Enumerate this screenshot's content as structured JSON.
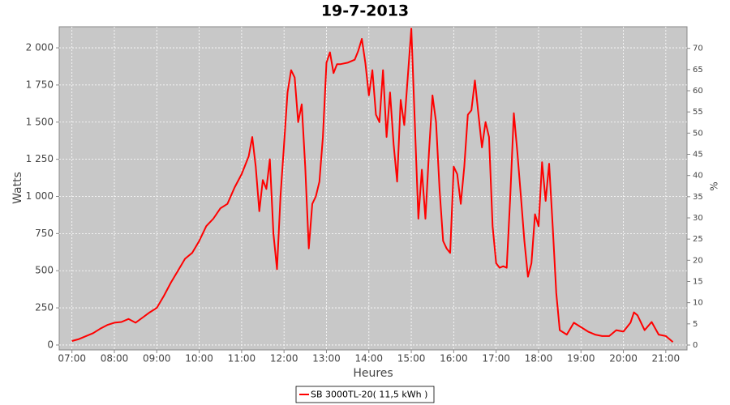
{
  "chart_data": {
    "type": "line",
    "title": "19-7-2013",
    "x_label": "Heures",
    "y_label": "Watts",
    "y2_label": "%",
    "grid": true,
    "legend": "bottom",
    "xlim": [
      "06:42",
      "21:30"
    ],
    "xticks": [
      "07:00",
      "08:00",
      "09:00",
      "10:00",
      "11:00",
      "12:00",
      "13:00",
      "14:00",
      "15:00",
      "16:00",
      "17:00",
      "18:00",
      "19:00",
      "20:00",
      "21:00"
    ],
    "ylim": [
      -33,
      2142
    ],
    "yticks": [
      0,
      250,
      500,
      750,
      {
        "value": 1000,
        "label": "1 000"
      },
      {
        "value": 1250,
        "label": "1 250"
      },
      {
        "value": 1500,
        "label": "1 500"
      },
      {
        "value": 1750,
        "label": "1 750"
      },
      {
        "value": 2000,
        "label": "2 000"
      }
    ],
    "y2lim": [
      -1.15,
      75.1
    ],
    "y2ticks": [
      0,
      5,
      10,
      15,
      20,
      25,
      30,
      35,
      40,
      45,
      50,
      55,
      60,
      65,
      70
    ],
    "x": [
      "07:00",
      "07:10",
      "07:20",
      "07:30",
      "07:40",
      "07:50",
      "08:00",
      "08:10",
      "08:20",
      "08:30",
      "08:40",
      "08:50",
      "09:00",
      "09:10",
      "09:20",
      "09:30",
      "09:40",
      "09:50",
      "10:00",
      "10:10",
      "10:20",
      "10:30",
      "10:40",
      "10:50",
      "11:00",
      "11:10",
      "11:15",
      "11:20",
      "11:25",
      "11:30",
      "11:35",
      "11:40",
      "11:45",
      "11:50",
      "11:55",
      "12:00",
      "12:05",
      "12:10",
      "12:15",
      "12:20",
      "12:25",
      "12:30",
      "12:35",
      "12:40",
      "12:45",
      "12:50",
      "12:55",
      "13:00",
      "13:05",
      "13:10",
      "13:15",
      "13:20",
      "13:30",
      "13:40",
      "13:45",
      "13:50",
      "13:55",
      "14:00",
      "14:05",
      "14:10",
      "14:15",
      "14:20",
      "14:25",
      "14:30",
      "14:35",
      "14:40",
      "14:45",
      "14:50",
      "14:55",
      "15:00",
      "15:05",
      "15:10",
      "15:15",
      "15:20",
      "15:25",
      "15:30",
      "15:35",
      "15:40",
      "15:45",
      "15:50",
      "15:55",
      "16:00",
      "16:05",
      "16:10",
      "16:15",
      "16:20",
      "16:25",
      "16:30",
      "16:35",
      "16:40",
      "16:45",
      "16:50",
      "16:55",
      "17:00",
      "17:05",
      "17:10",
      "17:15",
      "17:20",
      "17:25",
      "17:30",
      "17:35",
      "17:40",
      "17:45",
      "17:50",
      "17:55",
      "18:00",
      "18:05",
      "18:10",
      "18:15",
      "18:20",
      "18:25",
      "18:30",
      "18:40",
      "18:50",
      "19:00",
      "19:10",
      "19:20",
      "19:30",
      "19:40",
      "19:50",
      "20:00",
      "20:10",
      "20:15",
      "20:20",
      "20:30",
      "20:40",
      "20:50",
      "21:00",
      "21:10"
    ],
    "series": [
      {
        "name": "SB 3000TL-20( 11,5 kWh )",
        "color": "#ff0000",
        "values": [
          27,
          40,
          60,
          80,
          110,
          135,
          150,
          155,
          175,
          150,
          185,
          220,
          250,
          330,
          420,
          500,
          580,
          620,
          700,
          800,
          850,
          920,
          950,
          1060,
          1150,
          1270,
          1400,
          1200,
          900,
          1110,
          1050,
          1250,
          750,
          510,
          1000,
          1350,
          1700,
          1850,
          1800,
          1500,
          1620,
          1200,
          650,
          950,
          1000,
          1100,
          1400,
          1900,
          1970,
          1830,
          1890,
          1890,
          1900,
          1920,
          1980,
          2060,
          1900,
          1680,
          1850,
          1550,
          1500,
          1850,
          1400,
          1700,
          1350,
          1100,
          1650,
          1480,
          1800,
          2130,
          1500,
          850,
          1180,
          850,
          1300,
          1680,
          1500,
          1050,
          700,
          650,
          620,
          1200,
          1150,
          950,
          1200,
          1550,
          1580,
          1780,
          1550,
          1330,
          1500,
          1400,
          800,
          550,
          520,
          530,
          520,
          1000,
          1560,
          1300,
          1000,
          700,
          460,
          550,
          880,
          800,
          1230,
          970,
          1220,
          800,
          350,
          100,
          70,
          150,
          120,
          90,
          70,
          60,
          60,
          100,
          90,
          150,
          220,
          200,
          100,
          155,
          70,
          60,
          20
        ]
      }
    ]
  }
}
